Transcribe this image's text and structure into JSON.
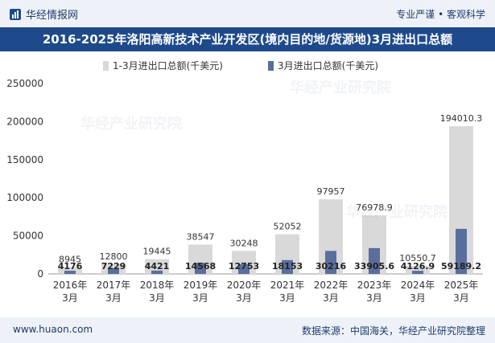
{
  "header": {
    "brand": "华经情报网",
    "slogan": "专业严谨 • 客观科学"
  },
  "title": "2016-2025年洛阳高新技术产业开发区(境内目的地/货源地)3月进出口总额",
  "footer": {
    "site": "www.huaon.com",
    "source": "数据来源：中国海关，华经产业研究院整理"
  },
  "watermark": "华经产业研究院",
  "colors": {
    "series_cumulative": "#d9d9d9",
    "series_month": "#5a6e9e",
    "title_bg": "#1e4a8c",
    "bar_bg": "#eef2f8"
  },
  "chart_data": {
    "type": "bar",
    "categories": [
      "2016年\n3月",
      "2017年\n3月",
      "2018年\n3月",
      "2019年\n3月",
      "2020年\n3月",
      "2021年\n3月",
      "2022年\n3月",
      "2023年\n3月",
      "2024年\n3月",
      "2025年\n3月"
    ],
    "series": [
      {
        "name": "1-3月进出口总额(千美元)",
        "values": [
          8945,
          12800,
          19445,
          38547,
          30248,
          52052,
          97957,
          76978.9,
          10550.7,
          194010.3
        ],
        "labels": [
          "8945",
          "12800",
          "19445",
          "38547",
          "30248",
          "52052",
          "97957",
          "76978.9",
          "10550.7",
          "194010.3"
        ]
      },
      {
        "name": "3月进出口总额(千美元)",
        "values": [
          4176,
          7229,
          4421,
          14568,
          12753,
          18153,
          30216,
          33905.6,
          4126.9,
          59189.2
        ],
        "labels": [
          "4176",
          "7229",
          "4421",
          "14568",
          "12753",
          "18153",
          "30216",
          "33905.6",
          "4126.9",
          "59189.2"
        ]
      }
    ],
    "yticks": [
      "0",
      "50000",
      "100000",
      "150000",
      "200000",
      "250000"
    ],
    "ylim": [
      0,
      250000
    ],
    "legend": "top-center",
    "grid": false
  }
}
